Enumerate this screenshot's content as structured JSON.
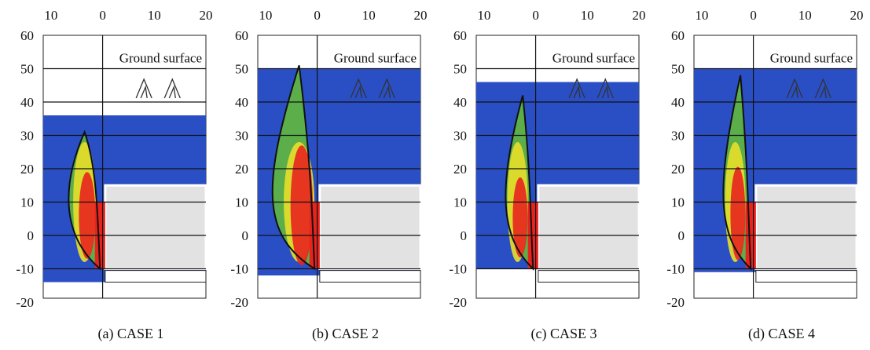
{
  "chart_data": [
    {
      "type": "contour",
      "annotation": "Ground surface",
      "caption": "(a) CASE 1",
      "xlim": [
        -11.5,
        20
      ],
      "ylim": [
        -20,
        60
      ],
      "xticks": [
        {
          "value": -10,
          "label": "10"
        },
        0,
        10,
        20
      ],
      "yticks": [
        60,
        50,
        40,
        30,
        20,
        10,
        0,
        -10,
        -20
      ]
    },
    {
      "type": "contour",
      "annotation": "Ground surface",
      "caption": "(b) CASE 2",
      "xlim": [
        -11.5,
        20
      ],
      "ylim": [
        -20,
        60
      ],
      "xticks": [
        {
          "value": -10,
          "label": "10"
        },
        0,
        10,
        20
      ],
      "yticks": [
        60,
        50,
        40,
        30,
        20,
        10,
        0,
        -10,
        -20
      ]
    },
    {
      "type": "contour",
      "annotation": "Ground surface",
      "caption": "(c) CASE 3",
      "xlim": [
        -11.5,
        20
      ],
      "ylim": [
        -20,
        60
      ],
      "xticks": [
        {
          "value": -10,
          "label": "10"
        },
        0,
        10,
        20
      ],
      "yticks": [
        60,
        50,
        40,
        30,
        20,
        10,
        0,
        -10,
        -20
      ]
    },
    {
      "type": "contour",
      "annotation": "Ground surface",
      "caption": "(d) CASE 4",
      "xlim": [
        -11.5,
        20
      ],
      "ylim": [
        -20,
        60
      ],
      "xticks": [
        {
          "value": -10,
          "label": "10"
        },
        0,
        10,
        20
      ],
      "yticks": [
        60,
        50,
        40,
        30,
        20,
        10,
        0,
        -10,
        -20
      ]
    }
  ]
}
